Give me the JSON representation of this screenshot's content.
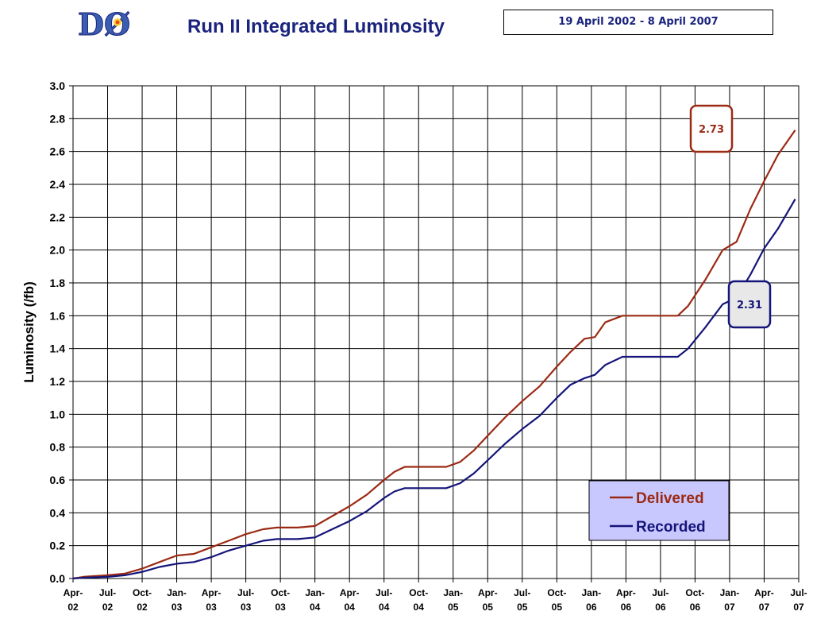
{
  "header": {
    "logo_text": "DØ",
    "title": "Run II Integrated Luminosity",
    "date_range": "19 April 2002 - 8 April 2007"
  },
  "colors": {
    "delivered": "#9b2a14",
    "recorded": "#14147a",
    "title": "#1a237e",
    "legend_bg": "#c8c8ff",
    "grid": "#000000"
  },
  "chart_data": {
    "type": "line",
    "title": "Run II Integrated Luminosity",
    "xlabel": "",
    "ylabel": "Luminosity (/fb)",
    "ylim": [
      0,
      3.0
    ],
    "ytick_labels": [
      "0.0",
      "0.2",
      "0.4",
      "0.6",
      "0.8",
      "1.0",
      "1.2",
      "1.4",
      "1.6",
      "1.8",
      "2.0",
      "2.2",
      "2.4",
      "2.6",
      "2.8",
      "3.0"
    ],
    "xtick_labels": [
      [
        "Apr-",
        "02"
      ],
      [
        "Jul-",
        "02"
      ],
      [
        "Oct-",
        "02"
      ],
      [
        "Jan-",
        "03"
      ],
      [
        "Apr-",
        "03"
      ],
      [
        "Jul-",
        "03"
      ],
      [
        "Oct-",
        "03"
      ],
      [
        "Jan-",
        "04"
      ],
      [
        "Apr-",
        "04"
      ],
      [
        "Jul-",
        "04"
      ],
      [
        "Oct-",
        "04"
      ],
      [
        "Jan-",
        "05"
      ],
      [
        "Apr-",
        "05"
      ],
      [
        "Jul-",
        "05"
      ],
      [
        "Oct-",
        "05"
      ],
      [
        "Jan-",
        "06"
      ],
      [
        "Apr-",
        "06"
      ],
      [
        "Jul-",
        "06"
      ],
      [
        "Oct-",
        "06"
      ],
      [
        "Jan-",
        "07"
      ],
      [
        "Apr-",
        "07"
      ],
      [
        "Jul-",
        "07"
      ]
    ],
    "grid": true,
    "legend_position": "bottom-right",
    "series": [
      {
        "name": "Delivered",
        "color": "#9b2a14",
        "end_label": "2.73",
        "points": [
          [
            0,
            0
          ],
          [
            0.3,
            0.01
          ],
          [
            1,
            0.02
          ],
          [
            1.5,
            0.03
          ],
          [
            2,
            0.06
          ],
          [
            2.5,
            0.1
          ],
          [
            3,
            0.14
          ],
          [
            3.5,
            0.15
          ],
          [
            4,
            0.19
          ],
          [
            4.5,
            0.23
          ],
          [
            5,
            0.27
          ],
          [
            5.5,
            0.3
          ],
          [
            5.9,
            0.31
          ],
          [
            6.5,
            0.31
          ],
          [
            7,
            0.32
          ],
          [
            7.5,
            0.38
          ],
          [
            8,
            0.44
          ],
          [
            8.5,
            0.51
          ],
          [
            9,
            0.6
          ],
          [
            9.3,
            0.65
          ],
          [
            9.6,
            0.68
          ],
          [
            10.8,
            0.68
          ],
          [
            11.2,
            0.71
          ],
          [
            11.6,
            0.78
          ],
          [
            12,
            0.87
          ],
          [
            12.5,
            0.98
          ],
          [
            13,
            1.08
          ],
          [
            13.5,
            1.17
          ],
          [
            14,
            1.29
          ],
          [
            14.4,
            1.38
          ],
          [
            14.8,
            1.46
          ],
          [
            15.1,
            1.47
          ],
          [
            15.4,
            1.56
          ],
          [
            15.9,
            1.6
          ],
          [
            17.5,
            1.6
          ],
          [
            17.8,
            1.66
          ],
          [
            18.3,
            1.82
          ],
          [
            18.8,
            2.0
          ],
          [
            19.2,
            2.05
          ],
          [
            19.6,
            2.25
          ],
          [
            20,
            2.42
          ],
          [
            20.4,
            2.58
          ],
          [
            20.9,
            2.73
          ]
        ]
      },
      {
        "name": "Recorded",
        "color": "#14147a",
        "end_label": "2.31",
        "points": [
          [
            0,
            0
          ],
          [
            0.3,
            0.005
          ],
          [
            1,
            0.01
          ],
          [
            1.5,
            0.02
          ],
          [
            2,
            0.04
          ],
          [
            2.5,
            0.07
          ],
          [
            3,
            0.09
          ],
          [
            3.5,
            0.1
          ],
          [
            4,
            0.13
          ],
          [
            4.5,
            0.17
          ],
          [
            5,
            0.2
          ],
          [
            5.5,
            0.23
          ],
          [
            5.9,
            0.24
          ],
          [
            6.5,
            0.24
          ],
          [
            7,
            0.25
          ],
          [
            7.5,
            0.3
          ],
          [
            8,
            0.35
          ],
          [
            8.5,
            0.41
          ],
          [
            9,
            0.49
          ],
          [
            9.3,
            0.53
          ],
          [
            9.6,
            0.55
          ],
          [
            10.8,
            0.55
          ],
          [
            11.2,
            0.58
          ],
          [
            11.6,
            0.64
          ],
          [
            12,
            0.72
          ],
          [
            12.5,
            0.82
          ],
          [
            13,
            0.91
          ],
          [
            13.5,
            0.99
          ],
          [
            14,
            1.1
          ],
          [
            14.4,
            1.18
          ],
          [
            14.8,
            1.22
          ],
          [
            15.1,
            1.24
          ],
          [
            15.4,
            1.3
          ],
          [
            15.9,
            1.35
          ],
          [
            17.5,
            1.35
          ],
          [
            17.8,
            1.4
          ],
          [
            18.3,
            1.53
          ],
          [
            18.8,
            1.67
          ],
          [
            19.2,
            1.71
          ],
          [
            19.6,
            1.85
          ],
          [
            20,
            2.01
          ],
          [
            20.4,
            2.13
          ],
          [
            20.9,
            2.31
          ]
        ]
      }
    ]
  }
}
